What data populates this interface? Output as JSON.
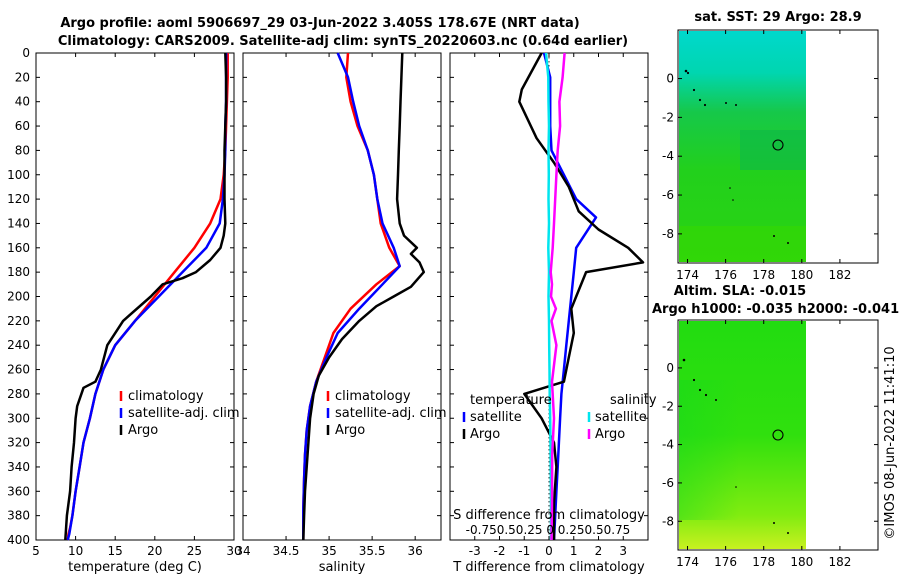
{
  "header": {
    "line1": "Argo profile: aoml 5906697_29 03-Jun-2022 3.405S 178.67E (NRT data)",
    "line2": "Climatology: CARS2009. Satellite-adj clim: synTS_20220603.nc (0.64d earlier)"
  },
  "watermark": "©IMOS 08-Jun-2022 11:41:10",
  "colors": {
    "climatology": "#ff0000",
    "satellite_adj": "#0000ff",
    "argo": "#000000",
    "satellite_t": "#0000ff",
    "argo_t": "#000000",
    "satellite_s": "#00e5ee",
    "argo_s": "#ff00ff"
  },
  "chart_data": [
    {
      "id": "temperature",
      "type": "line",
      "xlabel": "temperature (deg C)",
      "ylabel": "",
      "xlim": [
        5,
        30
      ],
      "ylim": [
        400,
        0
      ],
      "xticks": [
        5,
        10,
        15,
        20,
        25,
        30
      ],
      "yticks": [
        0,
        20,
        40,
        60,
        80,
        100,
        120,
        140,
        160,
        180,
        200,
        220,
        240,
        260,
        280,
        300,
        320,
        340,
        360,
        380,
        400
      ],
      "legend": [
        "climatology",
        "satellite-adj. clim",
        "Argo"
      ],
      "series": [
        {
          "name": "climatology",
          "color_key": "climatology",
          "x": [
            29.2,
            29.2,
            29.1,
            29.0,
            28.9,
            28.7,
            28.3,
            27.0,
            25.0,
            22.5,
            20.0,
            17.5,
            15.0,
            13.5,
            12.5,
            11.8,
            11.0,
            10.5,
            10.0,
            9.6,
            9.3,
            9.1,
            9.0
          ],
          "y": [
            0,
            20,
            40,
            60,
            80,
            100,
            120,
            140,
            160,
            180,
            200,
            220,
            240,
            260,
            280,
            300,
            320,
            340,
            360,
            380,
            390,
            395,
            400
          ]
        },
        {
          "name": "satellite-adj. clim",
          "color_key": "satellite_adj",
          "x": [
            29.0,
            29.0,
            29.0,
            28.9,
            28.9,
            28.8,
            28.6,
            28.2,
            26.5,
            23.5,
            20.5,
            17.5,
            15.0,
            13.5,
            12.5,
            11.8,
            11.0,
            10.5,
            10.0,
            9.6,
            9.2,
            9.0
          ],
          "y": [
            0,
            20,
            40,
            60,
            80,
            100,
            120,
            140,
            160,
            180,
            200,
            220,
            240,
            260,
            280,
            300,
            320,
            340,
            360,
            380,
            395,
            400
          ]
        },
        {
          "name": "Argo",
          "color_key": "argo",
          "x": [
            28.9,
            29.0,
            29.0,
            28.9,
            28.8,
            28.8,
            28.8,
            28.9,
            28.7,
            28.3,
            27.0,
            25.2,
            23.5,
            21.0,
            19.5,
            16.0,
            15.5,
            14.0,
            13.2,
            12.5,
            11.0,
            10.2,
            10.0,
            9.8,
            9.5,
            9.3,
            8.9,
            8.7
          ],
          "y": [
            0,
            20,
            40,
            60,
            80,
            100,
            120,
            140,
            150,
            160,
            170,
            180,
            185,
            190,
            200,
            220,
            225,
            240,
            260,
            270,
            275,
            290,
            300,
            320,
            340,
            360,
            380,
            400
          ]
        }
      ]
    },
    {
      "id": "salinity",
      "type": "line",
      "xlabel": "salinity",
      "xlim": [
        34,
        36.3
      ],
      "ylim": [
        400,
        0
      ],
      "xticks": [
        34,
        34.5,
        35,
        35.5,
        36
      ],
      "legend": [
        "climatology",
        "satellite-adj. clim",
        "Argo"
      ],
      "series": [
        {
          "name": "climatology",
          "color_key": "climatology",
          "x": [
            35.22,
            35.2,
            35.25,
            35.33,
            35.45,
            35.52,
            35.56,
            35.6,
            35.7,
            35.82,
            35.55,
            35.25,
            35.05,
            34.95,
            34.85,
            34.78,
            34.74,
            34.72,
            34.71,
            34.7,
            34.7
          ],
          "y": [
            0,
            20,
            40,
            60,
            80,
            100,
            120,
            140,
            160,
            175,
            190,
            210,
            230,
            250,
            270,
            290,
            310,
            330,
            350,
            375,
            400
          ]
        },
        {
          "name": "satellite-adj. clim",
          "color_key": "satellite_adj",
          "x": [
            35.1,
            35.22,
            35.28,
            35.35,
            35.45,
            35.52,
            35.56,
            35.62,
            35.75,
            35.82,
            35.62,
            35.35,
            35.1,
            34.97,
            34.85,
            34.78,
            34.74,
            34.72,
            34.71,
            34.7,
            34.7
          ],
          "y": [
            0,
            20,
            40,
            60,
            80,
            100,
            120,
            140,
            160,
            175,
            190,
            210,
            230,
            250,
            270,
            290,
            310,
            330,
            350,
            375,
            400
          ]
        },
        {
          "name": "Argo",
          "color_key": "argo",
          "x": [
            35.85,
            35.84,
            35.83,
            35.82,
            35.81,
            35.8,
            35.79,
            35.82,
            35.87,
            36.02,
            35.95,
            36.05,
            36.1,
            35.95,
            35.75,
            35.55,
            35.35,
            35.15,
            35.0,
            34.88,
            34.82,
            34.78,
            34.76,
            34.74,
            34.72,
            34.71,
            34.7
          ],
          "y": [
            0,
            20,
            40,
            60,
            80,
            100,
            120,
            140,
            150,
            160,
            165,
            172,
            180,
            192,
            200,
            208,
            220,
            235,
            250,
            265,
            280,
            300,
            320,
            340,
            360,
            380,
            400
          ]
        }
      ]
    },
    {
      "id": "difference",
      "type": "line",
      "xlabel": "T difference from climatology",
      "xlabel_top": "S difference from climatology",
      "top_tick_labels": [
        "-0.75",
        "-0.5",
        "0.25",
        "0",
        "0.25",
        "0.5",
        "0.75"
      ],
      "top_tick_text": "-0.750.50.25 0  0.250.50.75",
      "xlim": [
        -4,
        4
      ],
      "ylim": [
        400,
        0
      ],
      "xticks": [
        -3,
        -2,
        -1,
        0,
        1,
        2,
        3
      ],
      "legend_temperature": {
        "title": "temperature",
        "items": [
          "satellite",
          "Argo"
        ]
      },
      "legend_salinity": {
        "title": "salinity",
        "items": [
          "satellite",
          "Argo"
        ]
      },
      "series": [
        {
          "name": "T satellite",
          "color_key": "satellite_t",
          "x": [
            -0.2,
            0.05,
            0.05,
            0.05,
            0.1,
            0.6,
            1.1,
            1.9,
            1.1,
            1.0,
            0.9,
            0.8,
            0.7,
            0.6,
            0.5,
            0.45,
            0.4,
            0.35,
            0.3,
            0.25,
            0.2
          ],
          "y": [
            0,
            20,
            40,
            60,
            80,
            100,
            120,
            135,
            160,
            180,
            200,
            220,
            240,
            260,
            280,
            300,
            320,
            340,
            360,
            380,
            400
          ]
        },
        {
          "name": "T Argo",
          "color_key": "argo_t",
          "x": [
            -0.3,
            -1.1,
            -1.2,
            -0.5,
            0.2,
            0.8,
            1.2,
            2.0,
            3.2,
            3.8,
            1.5,
            1.1,
            0.9,
            1.0,
            0.8,
            0.6,
            -1.0,
            -0.3,
            0.2,
            0.3,
            0.2,
            0.2
          ],
          "y": [
            0,
            30,
            40,
            70,
            90,
            110,
            130,
            145,
            160,
            172,
            180,
            200,
            210,
            230,
            250,
            270,
            280,
            300,
            320,
            340,
            370,
            400
          ]
        },
        {
          "name": "S satellite",
          "color_key": "satellite_s",
          "x": [
            -0.12,
            -0.03,
            -0.02,
            0.0,
            -0.02,
            -0.01,
            -0.02,
            0.0,
            -0.03,
            0.0,
            -0.02,
            0.0,
            0.01,
            0.02,
            0.03,
            0.05,
            0.06,
            0.07,
            0.08,
            0.08
          ],
          "y": [
            0,
            20,
            40,
            60,
            80,
            100,
            120,
            140,
            160,
            180,
            200,
            220,
            240,
            260,
            280,
            300,
            320,
            340,
            370,
            400
          ]
        },
        {
          "name": "S Argo",
          "color_key": "argo_s",
          "x": [
            0.63,
            0.55,
            0.42,
            0.45,
            0.35,
            0.3,
            0.25,
            0.2,
            0.15,
            0.1,
            0.07,
            0.12,
            0.08,
            0.28,
            0.1,
            0.3,
            0.12,
            0.2,
            0.13,
            0.12,
            0.1
          ],
          "y": [
            0,
            20,
            40,
            60,
            80,
            100,
            120,
            140,
            160,
            172,
            180,
            190,
            200,
            210,
            220,
            240,
            270,
            300,
            330,
            370,
            400
          ]
        }
      ]
    },
    {
      "id": "sst_map",
      "type": "heatmap",
      "title": "sat. SST: 29 Argo: 28.9",
      "xlim": [
        173.5,
        184
      ],
      "ylim": [
        -9.5,
        2.5
      ],
      "xticks": [
        174,
        176,
        178,
        180,
        182
      ],
      "yticks": [
        0,
        -2,
        -4,
        -6,
        -8
      ],
      "data_xmax": 180,
      "marker": {
        "lon": 178.67,
        "lat": -3.405
      }
    },
    {
      "id": "sla_map",
      "type": "heatmap",
      "title": "Altim. SLA: -0.015",
      "subtitle": "Argo h1000: -0.035 h2000: -0.041",
      "xlim": [
        173.5,
        184
      ],
      "ylim": [
        -9.5,
        2.5
      ],
      "xticks": [
        174,
        176,
        178,
        180,
        182
      ],
      "yticks": [
        0,
        -2,
        -4,
        -6,
        -8
      ],
      "data_xmax": 180,
      "marker": {
        "lon": 178.67,
        "lat": -3.405
      }
    }
  ]
}
